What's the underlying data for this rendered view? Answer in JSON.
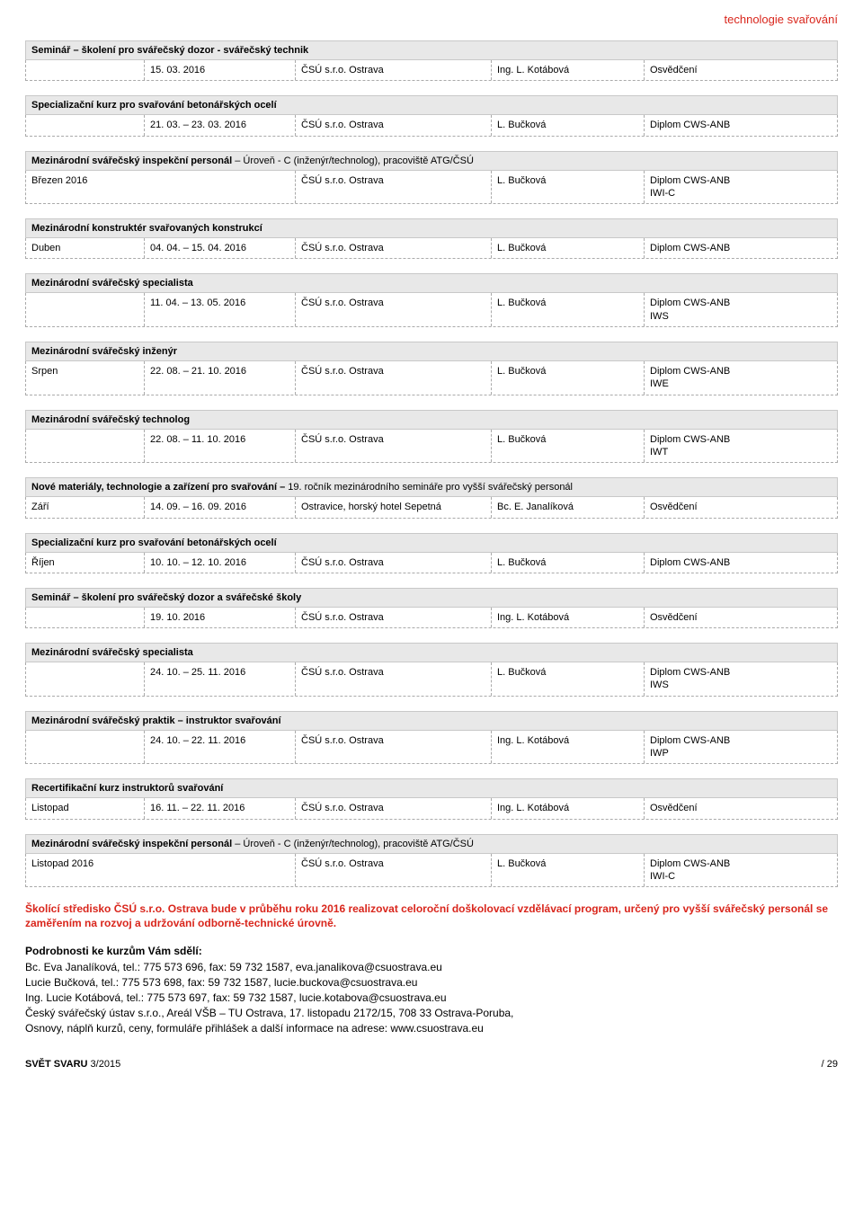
{
  "header_tag": "technologie svařování",
  "sections": [
    {
      "title": "Seminář – školení pro svářečský dozor - svářečský technik",
      "rows": [
        {
          "month": "",
          "date": "15. 03. 2016",
          "loc": "ČSÚ s.r.o. Ostrava",
          "person": "Ing. L. Kotábová",
          "cert": "Osvědčení"
        }
      ]
    },
    {
      "title": "Specializační kurz pro svařování betonářských ocelí",
      "rows": [
        {
          "month": "",
          "date": "21. 03. – 23. 03. 2016",
          "loc": "ČSÚ s.r.o. Ostrava",
          "person": "L. Bučková",
          "cert": "Diplom CWS-ANB"
        }
      ]
    },
    {
      "title": "Mezinárodní svářečský inspekční personál",
      "title_sub": " – Úroveň - C (inženýr/technolog), pracoviště ATG/ČSÚ",
      "rows": [
        {
          "month_wide": "Březen 2016",
          "loc": "ČSÚ s.r.o. Ostrava",
          "person": "L. Bučková",
          "cert": "Diplom CWS-ANB\nIWI-C"
        }
      ]
    },
    {
      "title": "Mezinárodní konstruktér svařovaných konstrukcí",
      "rows": [
        {
          "month": "Duben",
          "date": "04. 04. – 15. 04. 2016",
          "loc": "ČSÚ s.r.o. Ostrava",
          "person": "L. Bučková",
          "cert": "Diplom CWS-ANB"
        }
      ]
    },
    {
      "title": "Mezinárodní svářečský specialista",
      "rows": [
        {
          "month": "",
          "date": "11. 04. – 13. 05. 2016",
          "loc": "ČSÚ s.r.o. Ostrava",
          "person": "L. Bučková",
          "cert": "Diplom CWS-ANB\nIWS"
        }
      ]
    },
    {
      "title": "Mezinárodní svářečský inženýr",
      "rows": [
        {
          "month": "Srpen",
          "date": "22. 08. – 21. 10. 2016",
          "loc": "ČSÚ s.r.o. Ostrava",
          "person": "L. Bučková",
          "cert": "Diplom CWS-ANB\nIWE"
        }
      ]
    },
    {
      "title": "Mezinárodní svářečský technolog",
      "rows": [
        {
          "month": "",
          "date": "22. 08. – 11. 10. 2016",
          "loc": "ČSÚ s.r.o. Ostrava",
          "person": "L. Bučková",
          "cert": "Diplom CWS-ANB\nIWT"
        }
      ]
    },
    {
      "title": "Nové materiály, technologie a zařízení pro svařování – ",
      "title_sub": "19. ročník mezinárodního semináře pro vyšší svářečský personál",
      "rows": [
        {
          "month": "Září",
          "date": "14. 09. – 16. 09. 2016",
          "loc": "Ostravice, horský hotel Sepetná",
          "person": "Bc. E. Janalíková",
          "cert": "Osvědčení"
        }
      ]
    },
    {
      "title": "Specializační kurz pro svařování betonářských ocelí",
      "rows": [
        {
          "month": "Říjen",
          "date": "10. 10. – 12. 10. 2016",
          "loc": "ČSÚ s.r.o. Ostrava",
          "person": "L. Bučková",
          "cert": "Diplom CWS-ANB"
        }
      ]
    },
    {
      "title": "Seminář – školení pro svářečský dozor a svářečské školy",
      "rows": [
        {
          "month": "",
          "date": "19. 10. 2016",
          "loc": "ČSÚ s.r.o. Ostrava",
          "person": "Ing. L. Kotábová",
          "cert": "Osvědčení"
        }
      ]
    },
    {
      "title": "Mezinárodní svářečský specialista",
      "rows": [
        {
          "month": "",
          "date": "24. 10. – 25. 11. 2016",
          "loc": "ČSÚ s.r.o. Ostrava",
          "person": "L. Bučková",
          "cert": "Diplom CWS-ANB\nIWS"
        }
      ]
    },
    {
      "title": "Mezinárodní svářečský praktik – instruktor svařování",
      "rows": [
        {
          "month": "",
          "date": "24. 10. – 22. 11. 2016",
          "loc": "ČSÚ s.r.o. Ostrava",
          "person": "Ing. L. Kotábová",
          "cert": "Diplom CWS-ANB\nIWP"
        }
      ]
    },
    {
      "title": "Recertifikační kurz instruktorů svařování",
      "rows": [
        {
          "month": "Listopad",
          "date": "16. 11. – 22. 11. 2016",
          "loc": "ČSÚ s.r.o. Ostrava",
          "person": "Ing. L. Kotábová",
          "cert": "Osvědčení"
        }
      ]
    },
    {
      "title": "Mezinárodní svářečský inspekční personál",
      "title_sub": " – Úroveň - C (inženýr/technolog), pracoviště ATG/ČSÚ",
      "rows": [
        {
          "month_wide": "Listopad 2016",
          "loc": "ČSÚ s.r.o. Ostrava",
          "person": "L. Bučková",
          "cert": "Diplom CWS-ANB\nIWI-C"
        }
      ]
    }
  ],
  "para_red": "Školící středisko ČSÚ s.r.o. Ostrava bude v průběhu roku 2016 realizovat celoroční doškolovací vzdělávací program, určený pro vyšší svářečský personál se zaměřením na rozvoj a udržování odborně-technické úrovně.",
  "contacts_heading": "Podrobnosti ke kurzům Vám sdělí:",
  "contacts": [
    "Bc. Eva Janalíková, tel.: 775 573 696, fax: 59 732 1587, eva.janalikova@csuostrava.eu",
    "Lucie Bučková, tel.: 775 573 698, fax: 59 732 1587, lucie.buckova@csuostrava.eu",
    "Ing. Lucie Kotábová, tel.: 775 573 697, fax: 59 732 1587, lucie.kotabova@csuostrava.eu",
    "Český svářečský ústav s.r.o., Areál VŠB – TU Ostrava, 17. listopadu 2172/15, 708 33 Ostrava-Poruba,",
    "Osnovy, náplň kurzů, ceny, formuláře přihlášek a další informace na adrese: www.csuostrava.eu"
  ],
  "footer_left": "SVĚT SVARU",
  "footer_left_issue": " 3/2015",
  "footer_right": "/ 29"
}
